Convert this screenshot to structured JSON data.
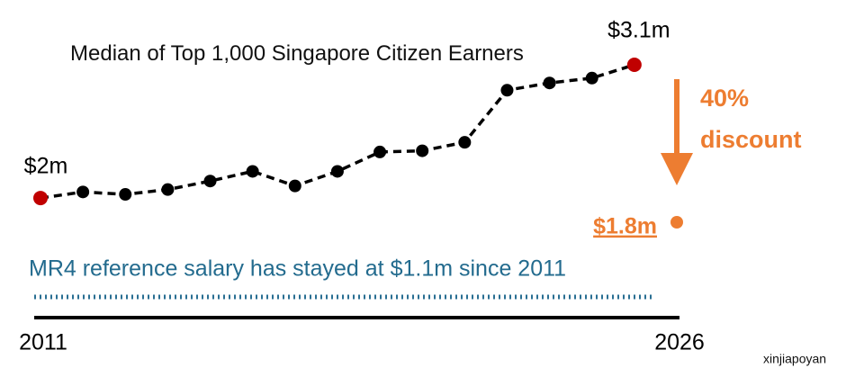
{
  "chart_data": {
    "type": "line",
    "title": "Median of Top 1,000 Singapore Citizen Earners",
    "note": "MR4 reference salary has stayed at $1.1m since 2011",
    "annotation": "40% discount",
    "watermark": "xinjiapoyan",
    "xlim": [
      2011,
      2026
    ],
    "xticks": [
      2011,
      2026
    ],
    "ylim": [
      1.8,
      3.1
    ],
    "endpoint_color": "#c00000",
    "series": [
      {
        "color": "#000000",
        "x": [
          2011,
          2012,
          2013,
          2014,
          2015,
          2016,
          2017,
          2018,
          2019,
          2020,
          2021,
          2022,
          2023,
          2024,
          2025
        ],
        "values": [
          2.0,
          2.05,
          2.03,
          2.07,
          2.14,
          2.22,
          2.1,
          2.22,
          2.38,
          2.39,
          2.46,
          2.89,
          2.95,
          2.99,
          3.1
        ],
        "value_labels": [
          "$2m",
          null,
          null,
          null,
          null,
          null,
          null,
          null,
          null,
          null,
          null,
          null,
          null,
          null,
          "$3.1m"
        ]
      },
      {
        "color": "#ED7D31",
        "x": [
          2026
        ],
        "values": [
          1.8
        ],
        "value_labels": [
          "$1.8m"
        ]
      }
    ]
  }
}
